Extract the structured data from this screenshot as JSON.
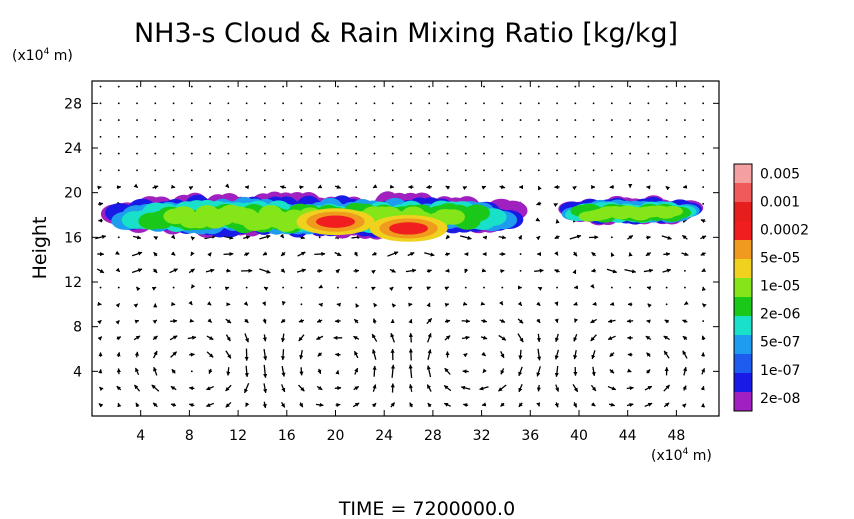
{
  "chart_data": {
    "type": "heatmap",
    "title": "NH3-s Cloud & Rain Mixing Ratio [kg/kg]",
    "ylabel": "Height",
    "y_unit": "(x10",
    "y_unit_exp": "4",
    "y_unit_suffix": " m)",
    "x_unit": "(x10",
    "x_unit_exp": "4",
    "x_unit_suffix": " m)",
    "xlim": [
      0,
      51.5
    ],
    "ylim": [
      0,
      30
    ],
    "x_ticks": [
      4,
      8,
      12,
      16,
      20,
      24,
      28,
      32,
      36,
      40,
      44,
      48
    ],
    "y_ticks": [
      4,
      8,
      12,
      16,
      20,
      24,
      28
    ],
    "footer": "TIME = 7200000.0",
    "colorbar": {
      "colors": [
        "#a020c0",
        "#1a1ae6",
        "#1e5cf0",
        "#1e9cf0",
        "#19e0c8",
        "#19c819",
        "#84e619",
        "#f0d21e",
        "#f09a1e",
        "#f01e1e",
        "#e61e1e",
        "#f05a5a",
        "#f5a0a0"
      ],
      "labels": [
        "2e-08",
        "1e-07",
        "5e-07",
        "2e-06",
        "1e-05",
        "5e-05",
        "0.0002",
        "0.001",
        "0.005"
      ]
    },
    "cloud_layer": {
      "comment_free": true,
      "segments": [
        {
          "x_start": 1.5,
          "x_end": 35.0,
          "y_bottom": 16.0,
          "y_top": 19.5
        },
        {
          "x_start": 39.0,
          "x_end": 49.5,
          "y_bottom": 17.0,
          "y_top": 19.3
        }
      ],
      "cores": [
        {
          "x": 20.0,
          "y": 17.4,
          "level": "0.001"
        },
        {
          "x": 26.0,
          "y": 16.8,
          "level": "0.001"
        }
      ]
    },
    "wind_field": {
      "description_free": true,
      "circulations": [
        {
          "x": 8.5,
          "y": 4.5,
          "sense": "cw"
        },
        {
          "x": 20.0,
          "y": 4.5,
          "sense": "ccw"
        },
        {
          "x": 31.0,
          "y": 5.0,
          "sense": "cw"
        },
        {
          "x": 44.0,
          "y": 4.5,
          "sense": "ccw"
        }
      ]
    }
  }
}
